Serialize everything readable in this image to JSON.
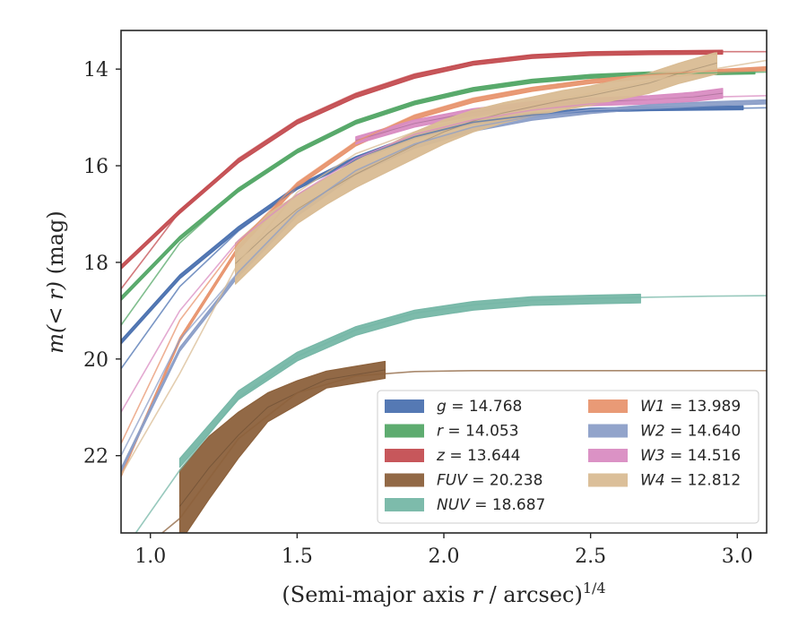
{
  "chart_data": {
    "type": "line",
    "xlabel_main": "(Semi-major axis ",
    "xlabel_var": "r",
    "xlabel_rest": " / arcsec)",
    "xlabel_sup": "1/4",
    "ylabel_main": "m",
    "ylabel_arg": "(< r)",
    "ylabel_unit": " (mag)",
    "xlim": [
      0.9,
      3.1
    ],
    "ylim": [
      23.6,
      13.2
    ],
    "y_inverted": true,
    "xticks": [
      1.0,
      1.5,
      2.0,
      2.5,
      3.0
    ],
    "xtick_labels": [
      "1.0",
      "1.5",
      "2.0",
      "2.5",
      "3.0"
    ],
    "yticks": [
      14,
      16,
      18,
      20,
      22
    ],
    "ytick_labels": [
      "14",
      "16",
      "18",
      "20",
      "22"
    ],
    "legend_placement": "lower-right",
    "series": [
      {
        "key": "g",
        "name": "g",
        "value": "14.768",
        "color": "#4c72b0",
        "model": {
          "x": [
            0.9,
            1.1,
            1.3,
            1.5,
            1.7,
            1.9,
            2.1,
            2.3,
            2.5,
            2.7,
            2.9,
            3.1
          ],
          "y": [
            20.2,
            18.5,
            17.35,
            16.45,
            15.85,
            15.4,
            15.1,
            14.95,
            14.87,
            14.84,
            14.82,
            14.8
          ]
        },
        "data": {
          "x": [
            0.9,
            1.1,
            1.3,
            1.5,
            1.7,
            1.9,
            2.1,
            2.3,
            2.5,
            2.7,
            3.02
          ],
          "y": [
            19.65,
            18.3,
            17.3,
            16.45,
            15.85,
            15.4,
            15.1,
            14.95,
            14.85,
            14.82,
            14.8
          ],
          "band": 0.04
        }
      },
      {
        "key": "r",
        "name": "r",
        "value": "14.053",
        "color": "#55a868",
        "model": {
          "x": [
            0.9,
            1.1,
            1.3,
            1.5,
            1.7,
            1.9,
            2.1,
            2.3,
            2.5,
            2.7,
            2.9,
            3.1
          ],
          "y": [
            19.3,
            17.6,
            16.5,
            15.7,
            15.1,
            14.7,
            14.42,
            14.25,
            14.15,
            14.1,
            14.08,
            14.06
          ]
        },
        "data": {
          "x": [
            0.9,
            1.1,
            1.3,
            1.5,
            1.7,
            1.9,
            2.1,
            2.3,
            2.5,
            2.7,
            3.06
          ],
          "y": [
            18.75,
            17.5,
            16.5,
            15.7,
            15.1,
            14.7,
            14.42,
            14.25,
            14.15,
            14.1,
            14.06
          ],
          "band": 0.04
        }
      },
      {
        "key": "z",
        "name": "z",
        "value": "13.644",
        "color": "#c44e52",
        "model": {
          "x": [
            0.9,
            1.1,
            1.3,
            1.5,
            1.7,
            1.9,
            2.1,
            2.3,
            2.5,
            2.7,
            2.9,
            3.1
          ],
          "y": [
            18.55,
            16.95,
            15.85,
            15.05,
            14.5,
            14.1,
            13.85,
            13.72,
            13.66,
            13.65,
            13.64,
            13.64
          ]
        },
        "data": {
          "x": [
            0.9,
            1.1,
            1.3,
            1.5,
            1.7,
            1.9,
            2.1,
            2.3,
            2.5,
            2.7,
            2.95
          ],
          "y": [
            18.1,
            16.95,
            15.9,
            15.1,
            14.55,
            14.15,
            13.88,
            13.74,
            13.68,
            13.66,
            13.65
          ],
          "band": 0.04
        }
      },
      {
        "key": "fuv",
        "name": "FUV",
        "value": "20.238",
        "color": "#8c613c",
        "model": {
          "x": [
            0.9,
            1.1,
            1.3,
            1.5,
            1.7,
            1.9,
            2.1,
            2.3,
            2.5,
            2.7,
            2.9,
            3.1
          ],
          "y": [
            24.3,
            23.3,
            21.65,
            20.7,
            20.35,
            20.26,
            20.24,
            20.24,
            20.24,
            20.24,
            20.24,
            20.24
          ]
        },
        "data": {
          "x": [
            1.1,
            1.2,
            1.3,
            1.4,
            1.5,
            1.6,
            1.7,
            1.8
          ],
          "y_top": [
            22.3,
            21.6,
            21.1,
            20.7,
            20.45,
            20.25,
            20.15,
            20.05
          ],
          "y_bot": [
            23.8,
            22.9,
            22.05,
            21.3,
            20.95,
            20.6,
            20.5,
            20.4
          ]
        }
      },
      {
        "key": "nuv",
        "name": "NUV",
        "value": "18.687",
        "color": "#76b7a7",
        "model": {
          "x": [
            0.95,
            1.1,
            1.3,
            1.5,
            1.7,
            1.9,
            2.1,
            2.3,
            2.5,
            2.7,
            2.9,
            3.1
          ],
          "y": [
            23.6,
            22.3,
            20.8,
            19.95,
            19.4,
            19.05,
            18.88,
            18.79,
            18.75,
            18.72,
            18.7,
            18.69
          ]
        },
        "data": {
          "x": [
            1.1,
            1.3,
            1.5,
            1.7,
            1.9,
            2.1,
            2.3,
            2.5,
            2.67
          ],
          "y": [
            22.15,
            20.75,
            19.95,
            19.42,
            19.08,
            18.9,
            18.8,
            18.77,
            18.75
          ],
          "band": 0.09
        }
      },
      {
        "key": "w1",
        "name": "W1",
        "value": "13.989",
        "color": "#e8956f",
        "model": {
          "x": [
            0.9,
            1.1,
            1.3,
            1.5,
            1.7,
            1.9,
            2.1,
            2.3,
            2.5,
            2.7,
            2.9,
            3.1
          ],
          "y": [
            21.75,
            19.2,
            17.6,
            16.35,
            15.5,
            14.95,
            14.6,
            14.38,
            14.22,
            14.12,
            14.04,
            14.0
          ]
        },
        "data": {
          "x": [
            0.9,
            1.1,
            1.3,
            1.5,
            1.7,
            1.9,
            2.1,
            2.3,
            2.5,
            2.7,
            2.9,
            3.1
          ],
          "y": [
            22.4,
            19.6,
            17.7,
            16.4,
            15.55,
            15.0,
            14.65,
            14.42,
            14.26,
            14.15,
            14.06,
            13.99
          ],
          "band": 0.04
        }
      },
      {
        "key": "w2",
        "name": "W2",
        "value": "14.640",
        "color": "#8c9fc8",
        "model": {
          "x": [
            0.9,
            1.1,
            1.3,
            1.5,
            1.7,
            1.9,
            2.1,
            2.3,
            2.5,
            2.7,
            2.9,
            3.1
          ],
          "y": [
            22.0,
            19.6,
            18.2,
            16.95,
            16.1,
            15.55,
            15.2,
            14.98,
            14.84,
            14.74,
            14.68,
            14.64
          ]
        },
        "data": {
          "x": [
            0.9,
            1.1,
            1.3,
            1.5,
            1.7,
            1.9,
            2.1,
            2.3,
            2.5,
            2.7,
            2.9,
            3.1
          ],
          "y": [
            22.3,
            19.8,
            18.25,
            17.0,
            16.15,
            15.6,
            15.25,
            15.02,
            14.88,
            14.78,
            14.72,
            14.68
          ],
          "band": 0.04
        }
      },
      {
        "key": "w3",
        "name": "W3",
        "value": "14.516",
        "color": "#d98cc2",
        "model": {
          "x": [
            0.9,
            1.1,
            1.3,
            1.5,
            1.7,
            1.9,
            2.1,
            2.3,
            2.5,
            2.7,
            2.9,
            3.1
          ],
          "y": [
            21.1,
            19.0,
            17.55,
            16.6,
            15.85,
            15.35,
            15.05,
            14.85,
            14.72,
            14.64,
            14.58,
            14.55
          ]
        },
        "data": {
          "x": [
            1.7,
            1.9,
            2.1,
            2.3,
            2.5,
            2.7,
            2.85,
            2.95
          ],
          "y_top": [
            15.4,
            15.05,
            14.82,
            14.67,
            14.6,
            14.55,
            14.48,
            14.4
          ],
          "y_bot": [
            15.55,
            15.2,
            14.97,
            14.82,
            14.76,
            14.72,
            14.67,
            14.6
          ]
        }
      },
      {
        "key": "w4",
        "name": "W4",
        "value": "12.812",
        "color": "#d9bc94",
        "model": {
          "x": [
            0.9,
            1.1,
            1.3,
            1.5,
            1.7,
            1.9,
            2.1,
            2.3,
            2.5,
            2.7,
            2.9,
            3.1
          ],
          "y": [
            22.4,
            20.3,
            18.0,
            16.55,
            15.75,
            15.3,
            15.0,
            14.75,
            14.5,
            14.25,
            14.02,
            13.82
          ]
        },
        "data": {
          "x": [
            1.29,
            1.4,
            1.5,
            1.6,
            1.7,
            1.8,
            1.9,
            2.0,
            2.1,
            2.2,
            2.3,
            2.4,
            2.5,
            2.6,
            2.7,
            2.8,
            2.93
          ],
          "y_top": [
            17.6,
            17.0,
            16.6,
            16.25,
            15.9,
            15.6,
            15.3,
            15.05,
            14.85,
            14.7,
            14.58,
            14.45,
            14.35,
            14.22,
            14.08,
            13.88,
            13.65
          ],
          "y_bot": [
            18.45,
            17.8,
            17.2,
            16.8,
            16.45,
            16.15,
            15.85,
            15.55,
            15.3,
            15.12,
            14.98,
            14.85,
            14.75,
            14.62,
            14.5,
            14.3,
            14.1
          ]
        }
      }
    ]
  }
}
